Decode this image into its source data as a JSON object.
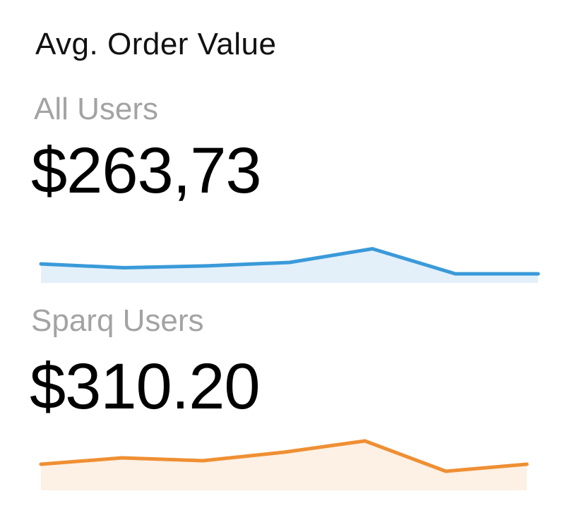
{
  "card": {
    "title": "Avg. Order Value"
  },
  "chart_data": [
    {
      "type": "area",
      "series_label": "All Users",
      "display_value": "$263,73",
      "color": "#3a9ad9",
      "fill": "#e3f0fa",
      "x": [
        0,
        1,
        2,
        3,
        4,
        5,
        6
      ],
      "values": [
        1.25,
        1.0,
        1.12,
        1.35,
        2.25,
        0.6,
        0.6
      ],
      "ylim": [
        0,
        4
      ],
      "axes": false,
      "grid": false
    },
    {
      "type": "area",
      "series_label": "Sparq Users",
      "display_value": "$310.20",
      "color": "#ef8f33",
      "fill": "#fdf0e4",
      "x": [
        0,
        1,
        2,
        3,
        4,
        5,
        6
      ],
      "values": [
        1.85,
        2.3,
        2.1,
        2.7,
        3.5,
        1.35,
        1.85
      ],
      "ylim": [
        0,
        4
      ],
      "axes": false,
      "grid": false
    }
  ]
}
